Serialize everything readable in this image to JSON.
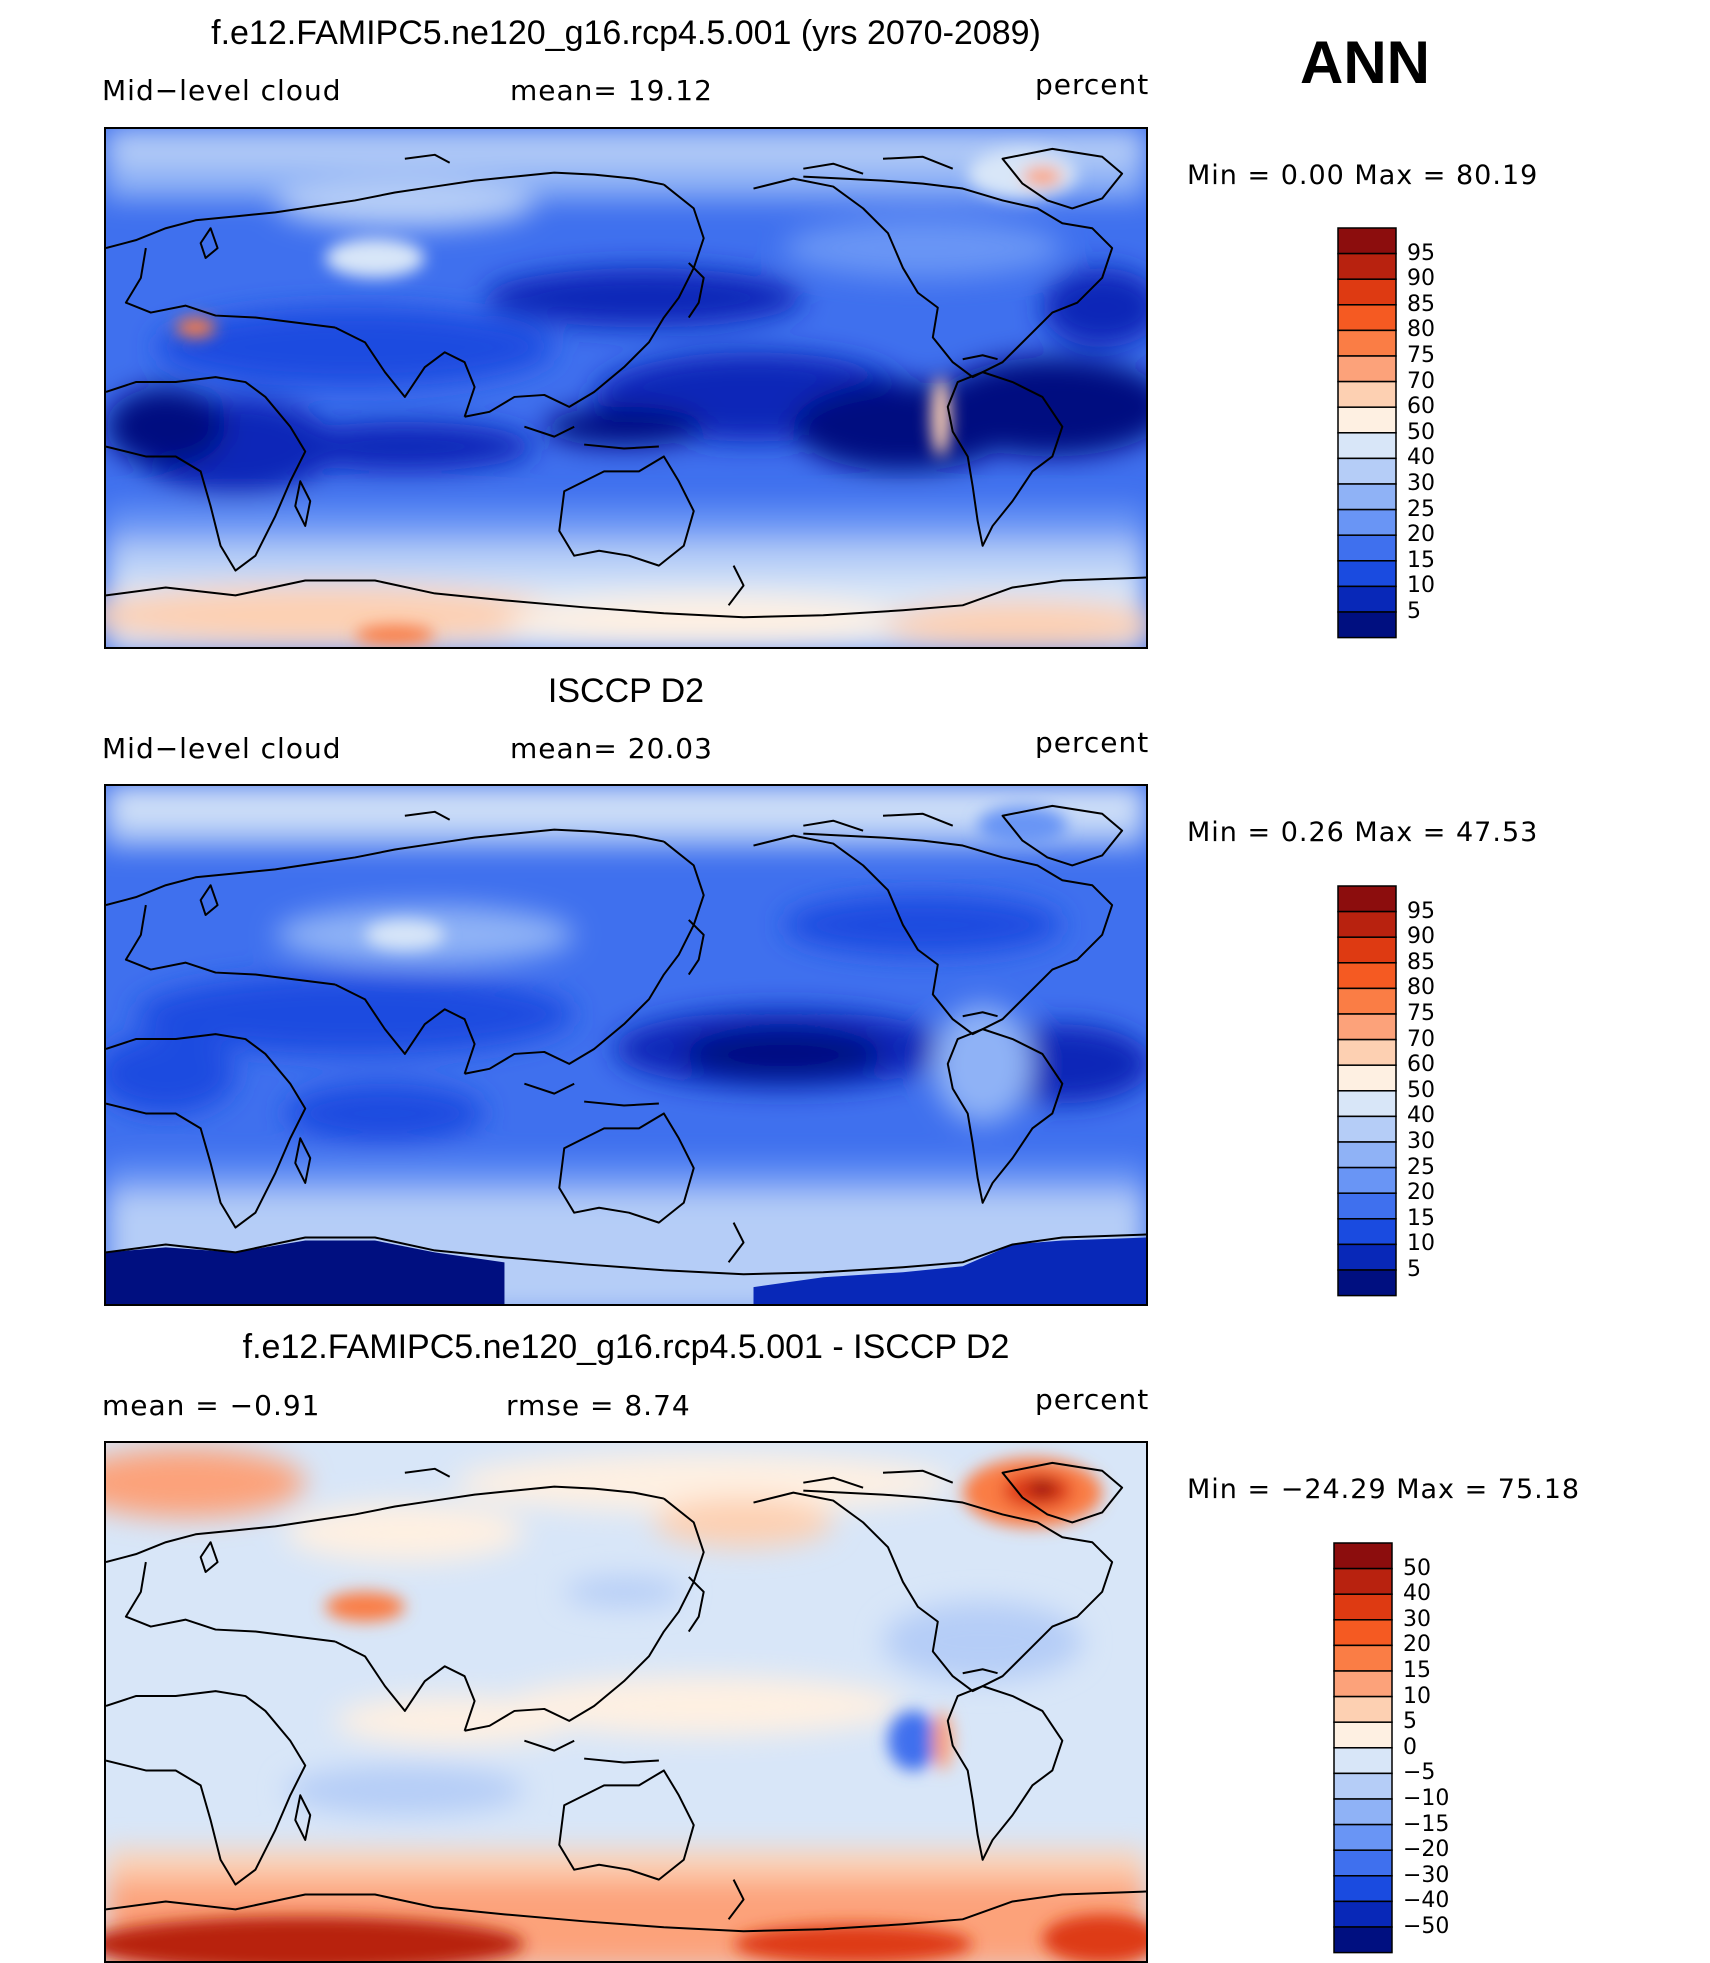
{
  "season": "ANN",
  "panels": [
    {
      "title": "f.e12.FAMIPC5.ne120_g16.rcp4.5.001 (yrs 2070-2089)",
      "left": "Mid−level cloud",
      "center": "mean=   19.12",
      "right": "percent",
      "minmax": "Min =     0.00  Max =    80.19"
    },
    {
      "title": "ISCCP D2",
      "left": "Mid−level cloud",
      "center": "mean=   20.03",
      "right": "percent",
      "minmax": "Min =     0.26  Max =    47.53"
    },
    {
      "title": "f.e12.FAMIPC5.ne120_g16.rcp4.5.001 - ISCCP D2",
      "left": "mean  =    −0.91",
      "center": "rmse  =     8.74",
      "right": "percent",
      "minmax": "Min = −24.29  Max =    75.18"
    }
  ],
  "colorbars": [
    {
      "labels": [
        "95",
        "90",
        "85",
        "80",
        "75",
        "70",
        "60",
        "50",
        "40",
        "30",
        "25",
        "20",
        "15",
        "10",
        "5"
      ],
      "colors": [
        "#8c0d0d",
        "#b8220f",
        "#de3a12",
        "#f55a22",
        "#fa7d45",
        "#fca27a",
        "#fdd0b2",
        "#fef0e2",
        "#d8e6f8",
        "#b5cdf7",
        "#8fb2f6",
        "#6995f5",
        "#3f70ee",
        "#1a4be0",
        "#0828b8",
        "#000f80"
      ]
    },
    {
      "labels": [
        "95",
        "90",
        "85",
        "80",
        "75",
        "70",
        "60",
        "50",
        "40",
        "30",
        "25",
        "20",
        "15",
        "10",
        "5"
      ],
      "colors": [
        "#8c0d0d",
        "#b8220f",
        "#de3a12",
        "#f55a22",
        "#fa7d45",
        "#fca27a",
        "#fdd0b2",
        "#fef0e2",
        "#d8e6f8",
        "#b5cdf7",
        "#8fb2f6",
        "#6995f5",
        "#3f70ee",
        "#1a4be0",
        "#0828b8",
        "#000f80"
      ]
    },
    {
      "labels": [
        "50",
        "40",
        "30",
        "20",
        "15",
        "10",
        "5",
        "0",
        "−5",
        "−10",
        "−15",
        "−20",
        "−30",
        "−40",
        "−50"
      ],
      "colors": [
        "#8c0d0d",
        "#b8220f",
        "#de3a12",
        "#f55a22",
        "#fa7d45",
        "#fca27a",
        "#fdd0b2",
        "#fef0e2",
        "#d8e6f8",
        "#b5cdf7",
        "#8fb2f6",
        "#6995f5",
        "#3f70ee",
        "#1a4be0",
        "#0828b8",
        "#000f80"
      ]
    }
  ]
}
